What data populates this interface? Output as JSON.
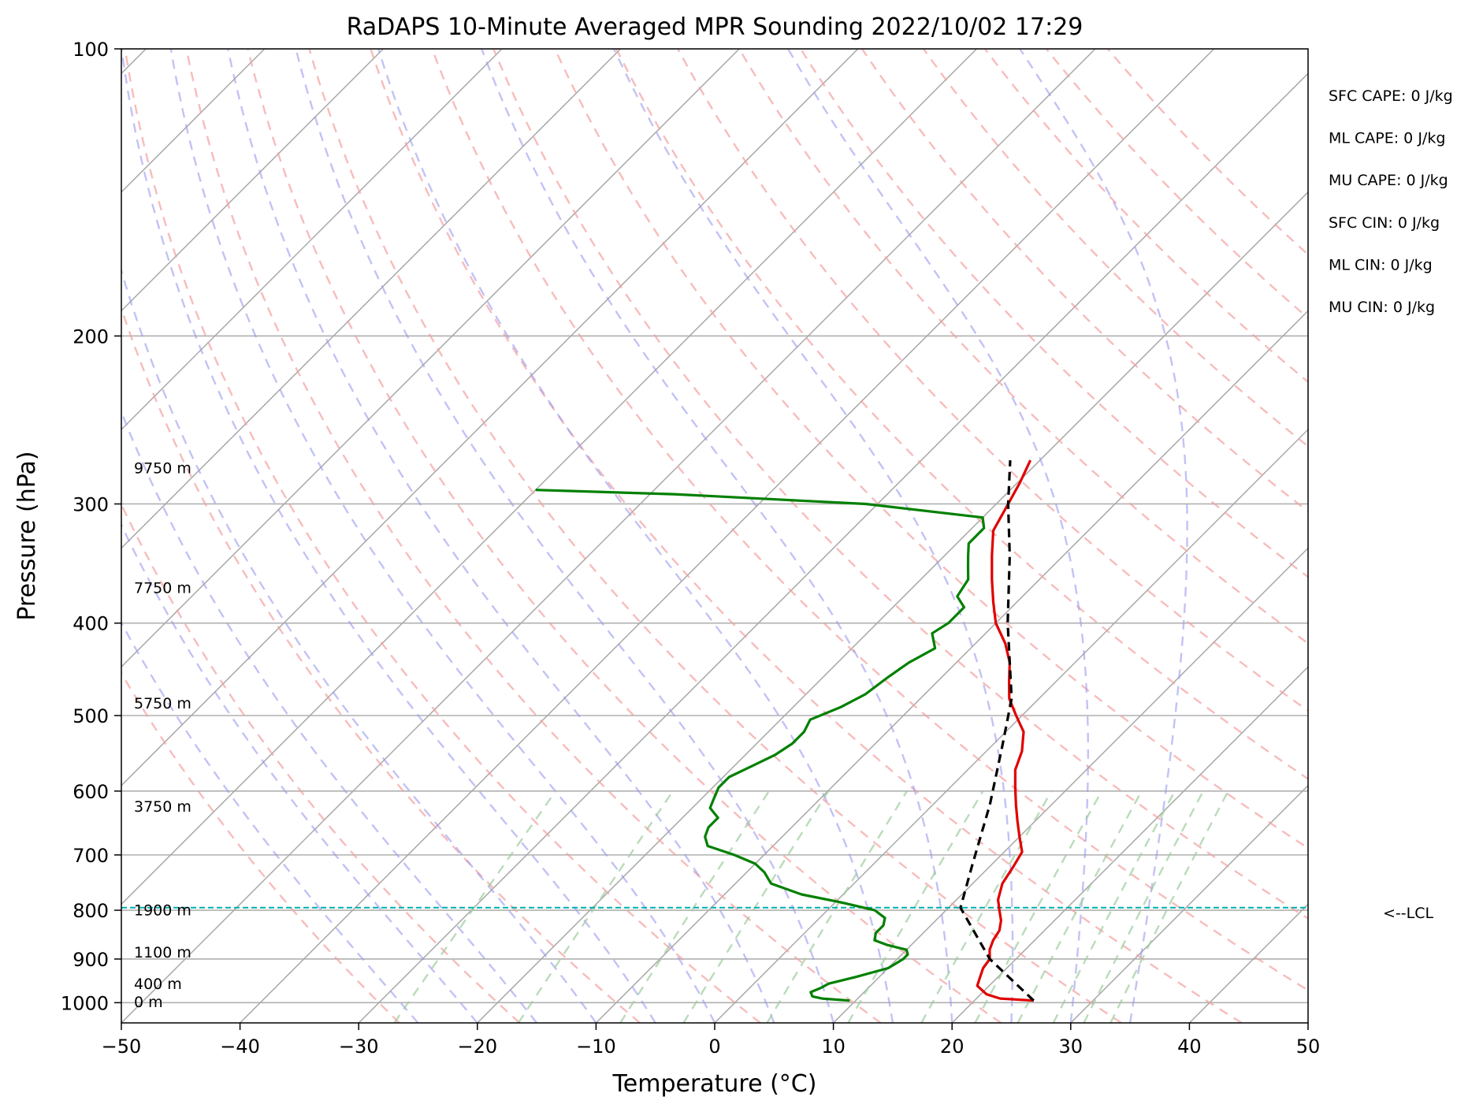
{
  "chart_data": {
    "type": "line",
    "title": "RaDAPS 10-Minute Averaged MPR Sounding 2022/10/02 17:29",
    "xlabel": "Temperature (°C)",
    "ylabel": "Pressure (hPa)",
    "xlim": [
      -50,
      50
    ],
    "ylim": [
      1050,
      100
    ],
    "yscale": "log",
    "grid": true,
    "x_ticks": [
      -50,
      -40,
      -30,
      -20,
      -10,
      0,
      10,
      20,
      30,
      40,
      50
    ],
    "x_tick_labels": [
      "−50",
      "−40",
      "−30",
      "−20",
      "−10",
      "0",
      "10",
      "20",
      "30",
      "40",
      "50"
    ],
    "y_ticks": [
      100,
      200,
      300,
      400,
      500,
      600,
      700,
      800,
      900,
      1000
    ],
    "y_tick_labels": [
      "100",
      "200",
      "300",
      "400",
      "500",
      "600",
      "700",
      "800",
      "900",
      "1000"
    ],
    "series": [
      {
        "role": "temperature",
        "color": "#e00000",
        "points": [
          [
            25.0,
            995
          ],
          [
            22.0,
            990
          ],
          [
            20.5,
            980
          ],
          [
            19.0,
            960
          ],
          [
            18.5,
            940
          ],
          [
            18.0,
            920
          ],
          [
            17.8,
            900
          ],
          [
            17.0,
            880
          ],
          [
            16.5,
            860
          ],
          [
            16.2,
            840
          ],
          [
            15.5,
            820
          ],
          [
            14.5,
            800
          ],
          [
            13.5,
            780
          ],
          [
            12.5,
            750
          ],
          [
            12.0,
            720
          ],
          [
            11.5,
            695
          ],
          [
            10.0,
            670
          ],
          [
            8.5,
            645
          ],
          [
            7.0,
            620
          ],
          [
            5.5,
            595
          ],
          [
            4.0,
            570
          ],
          [
            3.0,
            545
          ],
          [
            1.5,
            520
          ],
          [
            -0.5,
            500
          ],
          [
            -2.5,
            480
          ],
          [
            -4.0,
            460
          ],
          [
            -5.5,
            440
          ],
          [
            -7.5,
            420
          ],
          [
            -10.0,
            400
          ],
          [
            -12.0,
            380
          ],
          [
            -14.0,
            360
          ],
          [
            -16.0,
            340
          ],
          [
            -18.0,
            320
          ],
          [
            -19.0,
            300
          ],
          [
            -19.8,
            285
          ],
          [
            -20.8,
            270
          ]
        ]
      },
      {
        "role": "dewpoint",
        "color": "#008000",
        "points": [
          [
            9.5,
            995
          ],
          [
            7.0,
            990
          ],
          [
            6.0,
            985
          ],
          [
            5.5,
            975
          ],
          [
            6.0,
            965
          ],
          [
            6.3,
            955
          ],
          [
            8.0,
            940
          ],
          [
            10.0,
            920
          ],
          [
            10.5,
            900
          ],
          [
            10.5,
            890
          ],
          [
            10.0,
            880
          ],
          [
            8.0,
            870
          ],
          [
            6.5,
            860
          ],
          [
            6.0,
            845
          ],
          [
            6.0,
            830
          ],
          [
            5.5,
            815
          ],
          [
            4.0,
            800
          ],
          [
            0.5,
            785
          ],
          [
            -3.5,
            770
          ],
          [
            -7.0,
            750
          ],
          [
            -8.5,
            730
          ],
          [
            -10.0,
            715
          ],
          [
            -12.5,
            700
          ],
          [
            -15.5,
            685
          ],
          [
            -16.5,
            670
          ],
          [
            -17.0,
            655
          ],
          [
            -17.0,
            640
          ],
          [
            -18.5,
            625
          ],
          [
            -19.0,
            610
          ],
          [
            -19.5,
            595
          ],
          [
            -19.5,
            580
          ],
          [
            -18.5,
            565
          ],
          [
            -17.5,
            550
          ],
          [
            -17.0,
            535
          ],
          [
            -17.0,
            520
          ],
          [
            -17.5,
            505
          ],
          [
            -16.0,
            490
          ],
          [
            -15.0,
            475
          ],
          [
            -14.5,
            455
          ],
          [
            -14.0,
            440
          ],
          [
            -13.0,
            425
          ],
          [
            -14.5,
            410
          ],
          [
            -14.0,
            400
          ],
          [
            -14.0,
            385
          ],
          [
            -15.5,
            375
          ],
          [
            -16.0,
            360
          ],
          [
            -17.0,
            350
          ],
          [
            -18.0,
            340
          ],
          [
            -19.0,
            330
          ],
          [
            -19.0,
            318
          ],
          [
            -20.0,
            310
          ],
          [
            -31.0,
            300
          ],
          [
            -48.0,
            293
          ],
          [
            -60.0,
            290
          ]
        ]
      },
      {
        "role": "parcel",
        "color": "#000000",
        "dashed": true,
        "points": [
          [
            25.0,
            995
          ],
          [
            17.8,
            900
          ],
          [
            11.0,
            795
          ],
          [
            8.5,
            720
          ],
          [
            4.8,
            620
          ],
          [
            1.0,
            540
          ],
          [
            -2.3,
            480
          ],
          [
            -9.0,
            400
          ],
          [
            -14.5,
            340
          ],
          [
            -19.0,
            300
          ],
          [
            -22.5,
            270
          ]
        ]
      }
    ],
    "height_labels": [
      {
        "label": "9750 m",
        "p": 275
      },
      {
        "label": "7750 m",
        "p": 367
      },
      {
        "label": "5750 m",
        "p": 485
      },
      {
        "label": "3750 m",
        "p": 622
      },
      {
        "label": "1900 m",
        "p": 799
      },
      {
        "label": "1100 m",
        "p": 885
      },
      {
        "label": "400 m",
        "p": 955
      },
      {
        "label": "0 m",
        "p": 997
      }
    ],
    "lcl": {
      "p": 795,
      "label": "<--LCL",
      "color": "#00b0b0"
    },
    "stats": [
      "SFC CAPE: 0 J/kg",
      "ML CAPE: 0 J/kg",
      "MU CAPE: 0 J/kg",
      "SFC CIN: 0 J/kg",
      "ML CIN: 0 J/kg",
      "MU CIN: 0 J/kg"
    ],
    "skew_degrees": 45,
    "dry_adiabats_theta_c": [
      -30,
      -20,
      -10,
      0,
      10,
      20,
      30,
      40,
      50,
      60,
      70,
      80,
      90,
      100,
      110,
      120,
      130,
      140,
      150,
      160
    ],
    "moist_adiabats_t_c": [
      -25,
      -20,
      -15,
      -10,
      -5,
      0,
      5,
      10,
      15,
      20,
      25,
      30,
      35
    ],
    "mixing_ratio_g_kg": [
      0.4,
      1,
      2,
      3,
      5,
      8,
      12,
      16,
      20,
      24,
      28,
      32
    ]
  }
}
